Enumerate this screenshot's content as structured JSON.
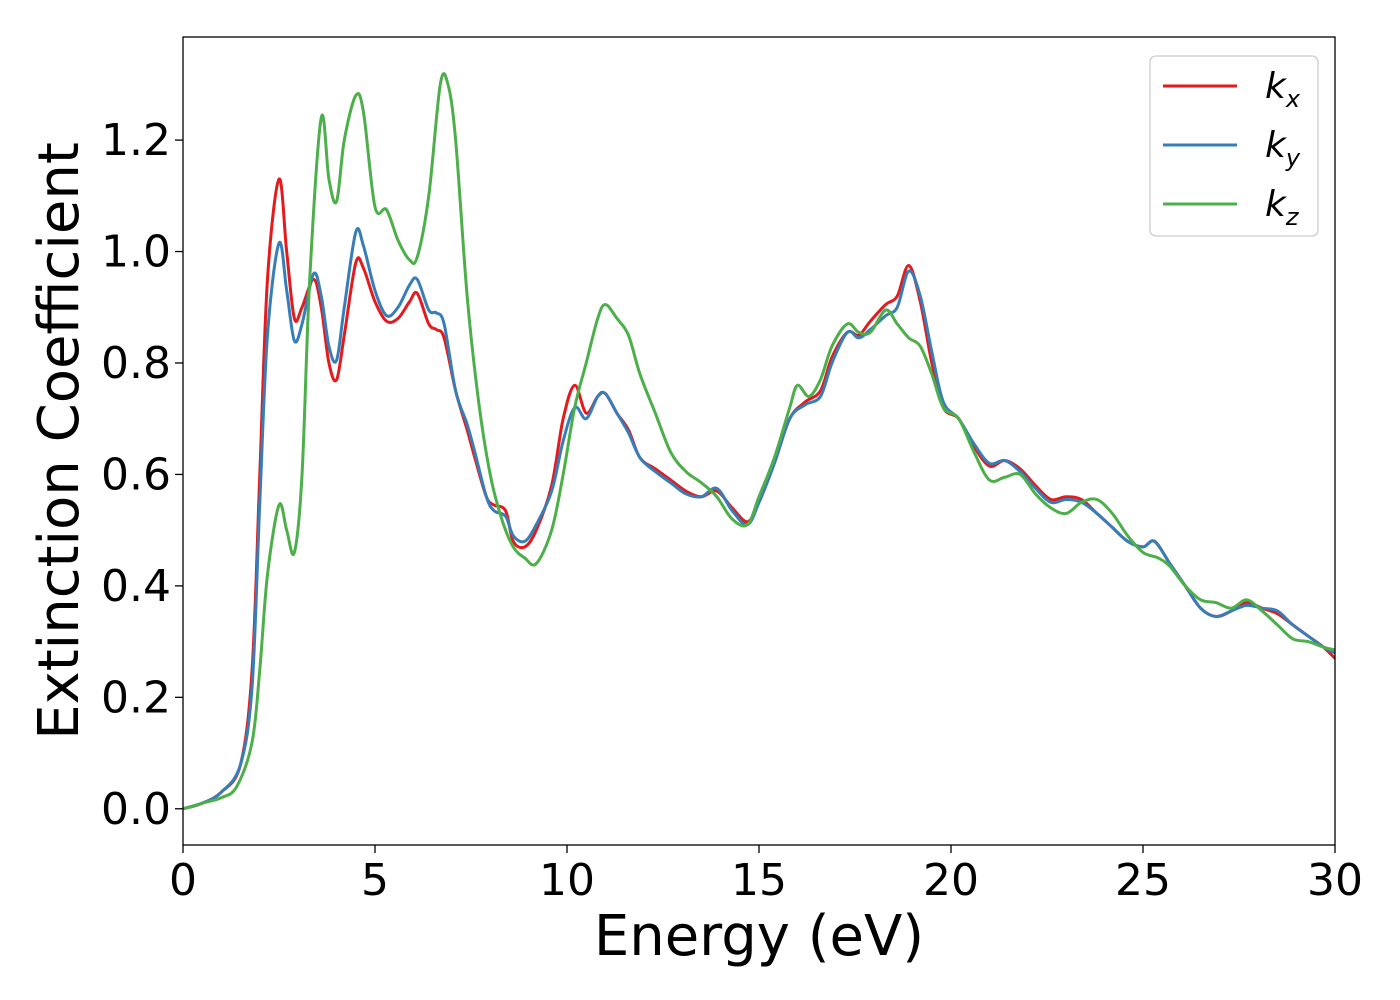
{
  "chart_data": {
    "type": "line",
    "xlabel": "Energy (eV)",
    "ylabel": "Extinction Coefficient",
    "xlim": [
      0,
      30
    ],
    "ylim": [
      -0.065,
      1.385
    ],
    "xticks": [
      0,
      5,
      10,
      15,
      20,
      25,
      30
    ],
    "xtick_labels": [
      "0",
      "5",
      "10",
      "15",
      "20",
      "25",
      "30"
    ],
    "yticks": [
      0.0,
      0.2,
      0.4,
      0.6,
      0.8,
      1.0,
      1.2
    ],
    "ytick_labels": [
      "0.0",
      "0.2",
      "0.4",
      "0.6",
      "0.8",
      "1.0",
      "1.2"
    ],
    "grid": false,
    "legend_position": "top-right",
    "series": [
      {
        "name": "k",
        "subscript": "x",
        "color": "#e41a1c",
        "points": [
          [
            0,
            0
          ],
          [
            0.5,
            0.01
          ],
          [
            1.0,
            0.03
          ],
          [
            1.5,
            0.08
          ],
          [
            1.8,
            0.25
          ],
          [
            2.0,
            0.6
          ],
          [
            2.2,
            0.95
          ],
          [
            2.5,
            1.13
          ],
          [
            2.7,
            1.0
          ],
          [
            2.9,
            0.88
          ],
          [
            3.1,
            0.9
          ],
          [
            3.4,
            0.95
          ],
          [
            3.6,
            0.9
          ],
          [
            3.8,
            0.8
          ],
          [
            4.0,
            0.77
          ],
          [
            4.2,
            0.85
          ],
          [
            4.5,
            0.98
          ],
          [
            4.7,
            0.97
          ],
          [
            5.0,
            0.91
          ],
          [
            5.3,
            0.875
          ],
          [
            5.6,
            0.88
          ],
          [
            5.9,
            0.91
          ],
          [
            6.1,
            0.925
          ],
          [
            6.4,
            0.87
          ],
          [
            6.6,
            0.86
          ],
          [
            6.8,
            0.845
          ],
          [
            7.1,
            0.75
          ],
          [
            7.4,
            0.68
          ],
          [
            7.6,
            0.63
          ],
          [
            7.9,
            0.56
          ],
          [
            8.1,
            0.545
          ],
          [
            8.4,
            0.535
          ],
          [
            8.6,
            0.48
          ],
          [
            8.9,
            0.47
          ],
          [
            9.2,
            0.5
          ],
          [
            9.6,
            0.58
          ],
          [
            9.9,
            0.7
          ],
          [
            10.2,
            0.76
          ],
          [
            10.5,
            0.71
          ],
          [
            10.8,
            0.74
          ],
          [
            11.0,
            0.745
          ],
          [
            11.3,
            0.71
          ],
          [
            11.6,
            0.68
          ],
          [
            11.9,
            0.63
          ],
          [
            12.3,
            0.61
          ],
          [
            12.7,
            0.59
          ],
          [
            13.1,
            0.57
          ],
          [
            13.5,
            0.56
          ],
          [
            13.9,
            0.57
          ],
          [
            14.3,
            0.54
          ],
          [
            14.7,
            0.515
          ],
          [
            15.0,
            0.55
          ],
          [
            15.4,
            0.62
          ],
          [
            15.8,
            0.7
          ],
          [
            16.2,
            0.73
          ],
          [
            16.6,
            0.75
          ],
          [
            16.9,
            0.81
          ],
          [
            17.3,
            0.855
          ],
          [
            17.6,
            0.85
          ],
          [
            17.9,
            0.875
          ],
          [
            18.3,
            0.905
          ],
          [
            18.6,
            0.92
          ],
          [
            18.9,
            0.975
          ],
          [
            19.2,
            0.91
          ],
          [
            19.5,
            0.8
          ],
          [
            19.8,
            0.72
          ],
          [
            20.2,
            0.7
          ],
          [
            20.6,
            0.65
          ],
          [
            21.0,
            0.615
          ],
          [
            21.4,
            0.625
          ],
          [
            21.8,
            0.61
          ],
          [
            22.2,
            0.58
          ],
          [
            22.6,
            0.555
          ],
          [
            23.0,
            0.56
          ],
          [
            23.4,
            0.555
          ],
          [
            23.8,
            0.53
          ],
          [
            24.2,
            0.505
          ],
          [
            24.6,
            0.48
          ],
          [
            25.0,
            0.47
          ],
          [
            25.3,
            0.48
          ],
          [
            25.7,
            0.44
          ],
          [
            26.1,
            0.4
          ],
          [
            26.5,
            0.36
          ],
          [
            26.9,
            0.345
          ],
          [
            27.3,
            0.355
          ],
          [
            27.7,
            0.37
          ],
          [
            28.1,
            0.36
          ],
          [
            28.5,
            0.35
          ],
          [
            28.9,
            0.33
          ],
          [
            29.3,
            0.31
          ],
          [
            29.7,
            0.29
          ],
          [
            30,
            0.27
          ]
        ]
      },
      {
        "name": "k",
        "subscript": "y",
        "color": "#377eb8",
        "points": [
          [
            0,
            0
          ],
          [
            0.5,
            0.01
          ],
          [
            1.0,
            0.03
          ],
          [
            1.5,
            0.08
          ],
          [
            1.8,
            0.22
          ],
          [
            2.0,
            0.55
          ],
          [
            2.2,
            0.85
          ],
          [
            2.5,
            1.015
          ],
          [
            2.7,
            0.93
          ],
          [
            2.9,
            0.84
          ],
          [
            3.1,
            0.87
          ],
          [
            3.4,
            0.96
          ],
          [
            3.6,
            0.92
          ],
          [
            3.8,
            0.83
          ],
          [
            4.0,
            0.805
          ],
          [
            4.2,
            0.9
          ],
          [
            4.5,
            1.035
          ],
          [
            4.7,
            1.01
          ],
          [
            5.0,
            0.93
          ],
          [
            5.3,
            0.885
          ],
          [
            5.6,
            0.9
          ],
          [
            5.9,
            0.94
          ],
          [
            6.1,
            0.95
          ],
          [
            6.4,
            0.895
          ],
          [
            6.6,
            0.89
          ],
          [
            6.8,
            0.87
          ],
          [
            7.1,
            0.75
          ],
          [
            7.4,
            0.69
          ],
          [
            7.6,
            0.64
          ],
          [
            7.9,
            0.56
          ],
          [
            8.1,
            0.535
          ],
          [
            8.4,
            0.525
          ],
          [
            8.6,
            0.49
          ],
          [
            8.9,
            0.48
          ],
          [
            9.2,
            0.51
          ],
          [
            9.6,
            0.57
          ],
          [
            9.9,
            0.66
          ],
          [
            10.2,
            0.72
          ],
          [
            10.5,
            0.7
          ],
          [
            10.8,
            0.74
          ],
          [
            11.0,
            0.745
          ],
          [
            11.3,
            0.71
          ],
          [
            11.6,
            0.675
          ],
          [
            11.9,
            0.63
          ],
          [
            12.3,
            0.605
          ],
          [
            12.7,
            0.585
          ],
          [
            13.1,
            0.565
          ],
          [
            13.5,
            0.56
          ],
          [
            13.9,
            0.575
          ],
          [
            14.3,
            0.535
          ],
          [
            14.7,
            0.51
          ],
          [
            15.0,
            0.55
          ],
          [
            15.4,
            0.62
          ],
          [
            15.8,
            0.7
          ],
          [
            16.2,
            0.725
          ],
          [
            16.6,
            0.74
          ],
          [
            16.9,
            0.8
          ],
          [
            17.3,
            0.855
          ],
          [
            17.6,
            0.845
          ],
          [
            17.9,
            0.86
          ],
          [
            18.3,
            0.885
          ],
          [
            18.6,
            0.9
          ],
          [
            18.9,
            0.965
          ],
          [
            19.2,
            0.92
          ],
          [
            19.5,
            0.82
          ],
          [
            19.8,
            0.73
          ],
          [
            20.2,
            0.7
          ],
          [
            20.6,
            0.655
          ],
          [
            21.0,
            0.62
          ],
          [
            21.4,
            0.625
          ],
          [
            21.8,
            0.605
          ],
          [
            22.2,
            0.575
          ],
          [
            22.6,
            0.55
          ],
          [
            23.0,
            0.555
          ],
          [
            23.4,
            0.55
          ],
          [
            23.8,
            0.53
          ],
          [
            24.2,
            0.505
          ],
          [
            24.6,
            0.48
          ],
          [
            25.0,
            0.47
          ],
          [
            25.3,
            0.48
          ],
          [
            25.7,
            0.44
          ],
          [
            26.1,
            0.4
          ],
          [
            26.5,
            0.36
          ],
          [
            26.9,
            0.345
          ],
          [
            27.3,
            0.355
          ],
          [
            27.7,
            0.365
          ],
          [
            28.1,
            0.36
          ],
          [
            28.5,
            0.355
          ],
          [
            28.9,
            0.33
          ],
          [
            29.3,
            0.31
          ],
          [
            29.7,
            0.29
          ],
          [
            30,
            0.28
          ]
        ]
      },
      {
        "name": "k",
        "subscript": "z",
        "color": "#4daf4a",
        "points": [
          [
            0,
            0
          ],
          [
            0.5,
            0.01
          ],
          [
            1.0,
            0.02
          ],
          [
            1.4,
            0.04
          ],
          [
            1.8,
            0.12
          ],
          [
            2.0,
            0.25
          ],
          [
            2.2,
            0.42
          ],
          [
            2.5,
            0.545
          ],
          [
            2.7,
            0.5
          ],
          [
            2.9,
            0.46
          ],
          [
            3.1,
            0.6
          ],
          [
            3.3,
            0.95
          ],
          [
            3.6,
            1.24
          ],
          [
            3.8,
            1.13
          ],
          [
            4.0,
            1.09
          ],
          [
            4.2,
            1.2
          ],
          [
            4.5,
            1.28
          ],
          [
            4.7,
            1.25
          ],
          [
            5.0,
            1.08
          ],
          [
            5.3,
            1.075
          ],
          [
            5.6,
            1.02
          ],
          [
            5.9,
            0.985
          ],
          [
            6.1,
            0.99
          ],
          [
            6.4,
            1.1
          ],
          [
            6.7,
            1.3
          ],
          [
            6.9,
            1.3
          ],
          [
            7.1,
            1.2
          ],
          [
            7.4,
            0.92
          ],
          [
            7.7,
            0.73
          ],
          [
            8.0,
            0.6
          ],
          [
            8.3,
            0.52
          ],
          [
            8.6,
            0.47
          ],
          [
            8.9,
            0.45
          ],
          [
            9.2,
            0.44
          ],
          [
            9.6,
            0.5
          ],
          [
            9.9,
            0.6
          ],
          [
            10.2,
            0.72
          ],
          [
            10.5,
            0.8
          ],
          [
            10.8,
            0.88
          ],
          [
            11.0,
            0.905
          ],
          [
            11.3,
            0.88
          ],
          [
            11.6,
            0.85
          ],
          [
            11.9,
            0.78
          ],
          [
            12.3,
            0.71
          ],
          [
            12.7,
            0.64
          ],
          [
            13.1,
            0.605
          ],
          [
            13.5,
            0.585
          ],
          [
            13.9,
            0.56
          ],
          [
            14.3,
            0.52
          ],
          [
            14.7,
            0.51
          ],
          [
            15.0,
            0.56
          ],
          [
            15.4,
            0.63
          ],
          [
            15.8,
            0.72
          ],
          [
            16.0,
            0.76
          ],
          [
            16.3,
            0.74
          ],
          [
            16.6,
            0.77
          ],
          [
            16.9,
            0.83
          ],
          [
            17.3,
            0.87
          ],
          [
            17.6,
            0.855
          ],
          [
            17.9,
            0.855
          ],
          [
            18.3,
            0.895
          ],
          [
            18.6,
            0.87
          ],
          [
            18.9,
            0.845
          ],
          [
            19.2,
            0.83
          ],
          [
            19.5,
            0.78
          ],
          [
            19.8,
            0.72
          ],
          [
            20.2,
            0.7
          ],
          [
            20.6,
            0.64
          ],
          [
            21.0,
            0.59
          ],
          [
            21.4,
            0.595
          ],
          [
            21.8,
            0.6
          ],
          [
            22.2,
            0.565
          ],
          [
            22.6,
            0.54
          ],
          [
            23.0,
            0.53
          ],
          [
            23.4,
            0.55
          ],
          [
            23.8,
            0.555
          ],
          [
            24.2,
            0.53
          ],
          [
            24.6,
            0.49
          ],
          [
            25.0,
            0.46
          ],
          [
            25.4,
            0.45
          ],
          [
            25.7,
            0.435
          ],
          [
            26.1,
            0.4
          ],
          [
            26.5,
            0.375
          ],
          [
            26.9,
            0.37
          ],
          [
            27.3,
            0.36
          ],
          [
            27.7,
            0.375
          ],
          [
            28.1,
            0.355
          ],
          [
            28.5,
            0.33
          ],
          [
            28.9,
            0.305
          ],
          [
            29.3,
            0.3
          ],
          [
            29.7,
            0.29
          ],
          [
            30,
            0.285
          ]
        ]
      }
    ]
  }
}
